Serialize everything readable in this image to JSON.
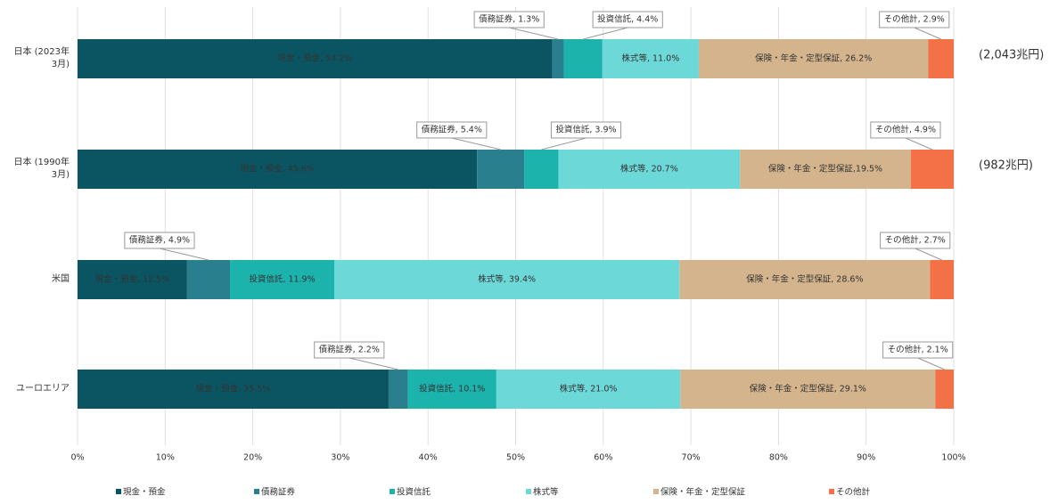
{
  "chart_data": {
    "type": "stacked-bar-horizontal",
    "categories": [
      "日本 (2023年\n3月)",
      "日本 (1990年\n3月)",
      "米国",
      "ユーロエリア"
    ],
    "series": [
      {
        "name": "現金・預金",
        "color": "#0b5563",
        "values": [
          54.2,
          45.6,
          12.5,
          35.5
        ],
        "value_labels": [
          "現金・預金, 54.2%",
          "現金・預金, 45.6%",
          "現金・預金, 12.5%",
          "現金・預金, 35.5%"
        ]
      },
      {
        "name": "債務証券",
        "color": "#2a7f8f",
        "values": [
          1.3,
          5.4,
          4.9,
          2.2
        ],
        "value_labels": [
          "債務証券, 1.3%",
          "債務証券, 5.4%",
          "債務証券, 4.9%",
          "債務証券, 2.2%"
        ]
      },
      {
        "name": "投資信託",
        "color": "#1db3ad",
        "values": [
          4.4,
          3.9,
          11.9,
          10.1
        ],
        "value_labels": [
          "投資信託, 4.4%",
          "投資信託, 3.9%",
          "投資信託, 11.9%",
          "投資信託, 10.1%"
        ]
      },
      {
        "name": "株式等",
        "color": "#6dd8d8",
        "values": [
          11.0,
          20.7,
          39.4,
          21.0
        ],
        "value_labels": [
          "株式等, 11.0%",
          "株式等, 20.7%",
          "株式等, 39.4%",
          "株式等, 21.0%"
        ]
      },
      {
        "name": "保険・年金・定型保証",
        "color": "#d4b48c",
        "values": [
          26.2,
          19.5,
          28.6,
          29.1
        ],
        "value_labels": [
          "保険・年金・定型保証, 26.2%",
          "保険・年金・定型保証,19.5%",
          "保険・年金・定型保証, 28.6%",
          "保険・年金・定型保証, 29.1%"
        ]
      },
      {
        "name": "その他計",
        "color": "#f47046",
        "values": [
          2.9,
          4.9,
          2.7,
          2.1
        ],
        "value_labels": [
          "その他計, 2.9%",
          "その他計, 4.9%",
          "その他計, 2.7%",
          "その他計, 2.1%"
        ]
      }
    ],
    "annotations": [
      "(2,043兆円)",
      "(982兆円)",
      null,
      null
    ],
    "xlim": [
      0,
      100
    ],
    "xticks": [
      {
        "value": 0,
        "label": "0%"
      },
      {
        "value": 10,
        "label": "10%"
      },
      {
        "value": 20,
        "label": "20%"
      },
      {
        "value": 30,
        "label": "30%"
      },
      {
        "value": 40,
        "label": "40%"
      },
      {
        "value": 50,
        "label": "50%"
      },
      {
        "value": 60,
        "label": "60%"
      },
      {
        "value": 70,
        "label": "70%"
      },
      {
        "value": 80,
        "label": "80%"
      },
      {
        "value": 90,
        "label": "90%"
      },
      {
        "value": 100,
        "label": "100%"
      }
    ],
    "grid": true
  }
}
